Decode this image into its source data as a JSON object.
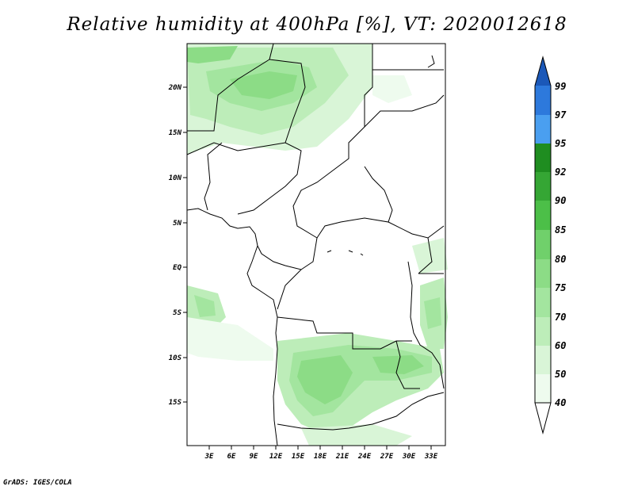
{
  "title": "Relative humidity at 400hPa [%], VT: 2020012618",
  "footer": "GrADS: IGES/COLA",
  "lat_labels": [
    "20N",
    "15N",
    "10N",
    "5N",
    "EQ",
    "5S",
    "10S",
    "15S"
  ],
  "lon_labels": [
    "3E",
    "6E",
    "9E",
    "12E",
    "15E",
    "18E",
    "21E",
    "24E",
    "27E",
    "30E",
    "33E"
  ],
  "colorbar": {
    "levels": [
      "40",
      "50",
      "60",
      "70",
      "75",
      "80",
      "85",
      "90",
      "92",
      "95",
      "97",
      "99"
    ],
    "colors": [
      "#eefbee",
      "#d9f5d7",
      "#bdedb9",
      "#a3e59f",
      "#8cdc86",
      "#70d06b",
      "#4cbf48",
      "#35a634",
      "#1f8d20",
      "#4a9ff0",
      "#2d79dc",
      "#1b58b8"
    ]
  }
}
